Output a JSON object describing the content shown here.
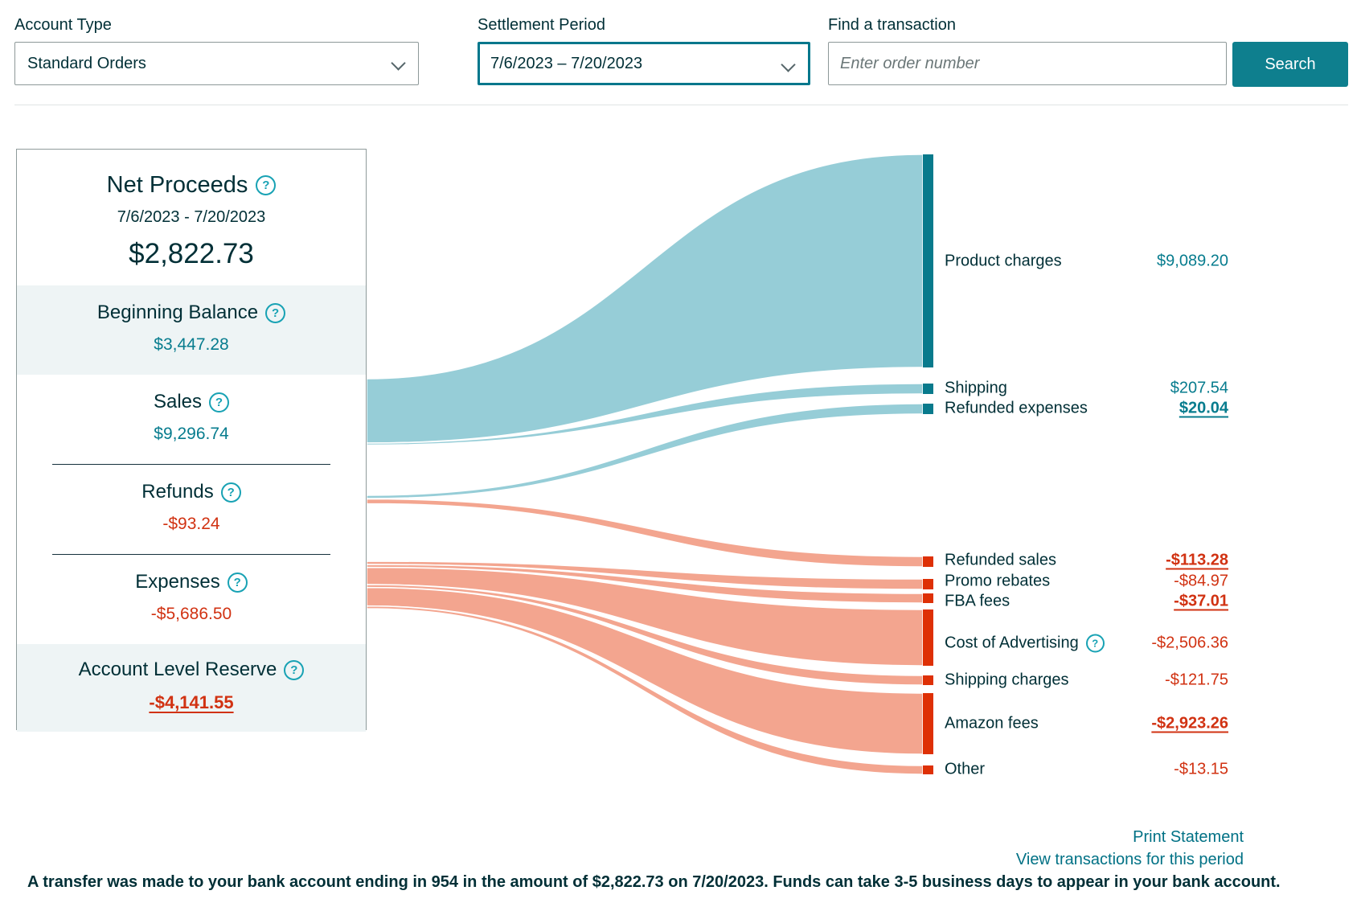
{
  "toolbar": {
    "account_type_label": "Account Type",
    "account_type_value": "Standard Orders",
    "settlement_label": "Settlement Period",
    "settlement_value": "7/6/2023 – 7/20/2023",
    "find_label": "Find a transaction",
    "find_placeholder": "Enter order number",
    "search_label": "Search"
  },
  "summary_card": {
    "title": "Net Proceeds",
    "date_range": "7/6/2023 - 7/20/2023",
    "amount": "$2,822.73",
    "rows": [
      {
        "label": "Beginning Balance",
        "value": "$3,447.28"
      },
      {
        "label": "Sales",
        "value": "$9,296.74"
      },
      {
        "label": "Refunds",
        "value": "-$93.24"
      },
      {
        "label": "Expenses",
        "value": "-$5,686.50"
      },
      {
        "label": "Account Level Reserve",
        "value": "-$4,141.55"
      }
    ]
  },
  "chart_data": {
    "type": "sankey",
    "sources": [
      {
        "name": "Beginning Balance",
        "value": 3447.28
      },
      {
        "name": "Sales",
        "value": 9296.74
      },
      {
        "name": "Refunds",
        "value": -93.24
      },
      {
        "name": "Expenses",
        "value": -5686.5
      },
      {
        "name": "Account Level Reserve",
        "value": -4141.55
      }
    ],
    "targets": [
      {
        "label": "Product charges",
        "amount": "$9,089.20",
        "value": 9089.2,
        "positive": true,
        "emphasized": false
      },
      {
        "label": "Shipping",
        "amount": "$207.54",
        "value": 207.54,
        "positive": true,
        "emphasized": false
      },
      {
        "label": "Refunded expenses",
        "amount": "$20.04",
        "value": 20.04,
        "positive": true,
        "emphasized": true
      },
      {
        "label": "Refunded sales",
        "amount": "-$113.28",
        "value": -113.28,
        "positive": false,
        "emphasized": true
      },
      {
        "label": "Promo rebates",
        "amount": "-$84.97",
        "value": -84.97,
        "positive": false,
        "emphasized": false
      },
      {
        "label": "FBA fees",
        "amount": "-$37.01",
        "value": -37.01,
        "positive": false,
        "emphasized": true
      },
      {
        "label": "Cost of Advertising",
        "amount": "-$2,506.36",
        "value": -2506.36,
        "positive": false,
        "emphasized": false,
        "has_help": true
      },
      {
        "label": "Shipping charges",
        "amount": "-$121.75",
        "value": -121.75,
        "positive": false,
        "emphasized": false
      },
      {
        "label": "Amazon fees",
        "amount": "-$2,923.26",
        "value": -2923.26,
        "positive": false,
        "emphasized": true
      },
      {
        "label": "Other",
        "amount": "-$13.15",
        "value": -13.15,
        "positive": false,
        "emphasized": false
      }
    ],
    "colors": {
      "flow_positive": "#96cdd7",
      "flow_negative": "#f3a58f",
      "node_positive": "#087a8c",
      "node_negative": "#de3005",
      "value_positive": "#077c8e",
      "value_negative": "#d13212"
    }
  },
  "footer": {
    "print_link": "Print Statement",
    "view_link": "View transactions for this period",
    "transfer_note": "A transfer was made to your bank account ending in 954 in the amount of $2,822.73 on 7/20/2023. Funds can take 3-5 business days to appear in your bank account."
  }
}
